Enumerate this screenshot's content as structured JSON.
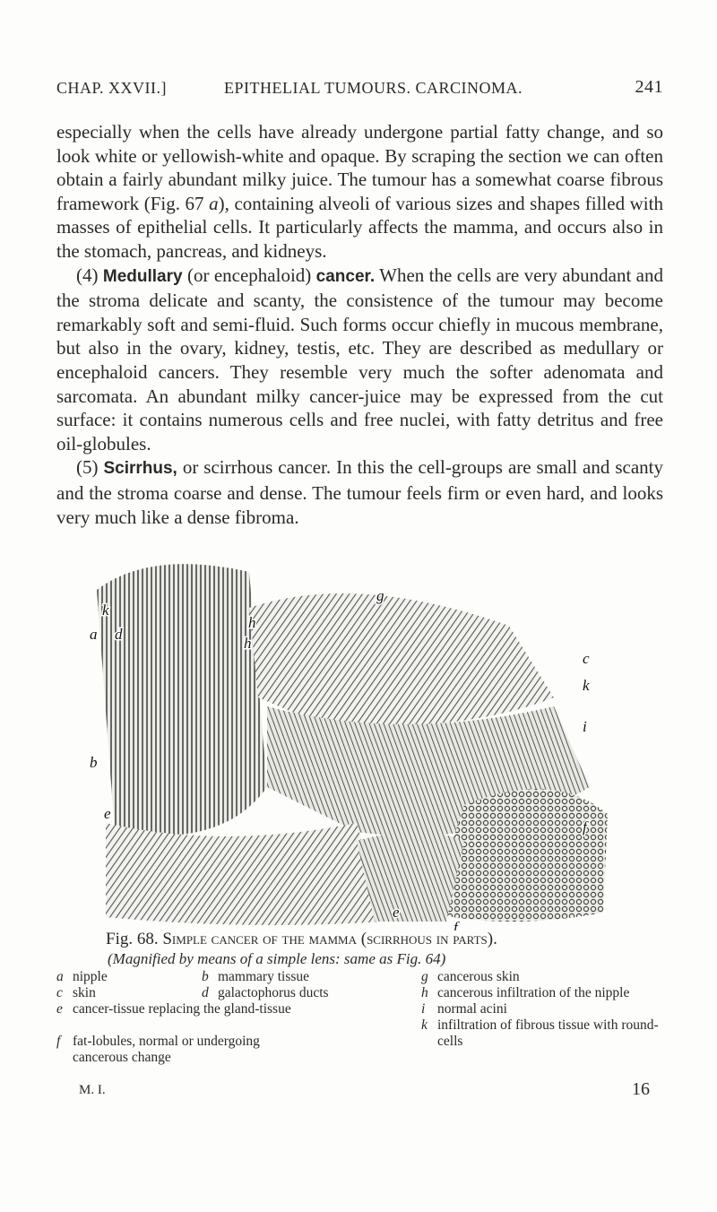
{
  "header": {
    "left": "CHAP. XXVII.]",
    "center": "EPITHELIAL TUMOURS. CARCINOMA.",
    "right": "241"
  },
  "paragraphs": [
    [
      {
        "text": "especially when the cells have already undergone partial fatty change, and so look white or yellowish-white and opaque. By scraping the section we can often obtain a fairly abundant milky juice. The tumour has a somewhat coarse fibrous framework (Fig. 67 "
      },
      {
        "text": "a",
        "style": "italic"
      },
      {
        "text": "), containing alveoli of various sizes and shapes filled with masses of epithelial cells. It particularly affects the mamma, and occurs also in the stomach, pancreas, and kidneys."
      }
    ],
    [
      {
        "text": "(4) "
      },
      {
        "text": "Medullary",
        "style": "bold"
      },
      {
        "text": " (or encephaloid) "
      },
      {
        "text": "cancer.",
        "style": "bold"
      },
      {
        "text": " When the cells are very abundant and the stroma delicate and scanty, the consistence of the tumour may become remarkably soft and semi-fluid. Such forms occur chiefly in mucous membrane, but also in the ovary, kidney, testis, etc. They are described as medullary or encephaloid cancers. They resemble very much the softer adenomata and sarcomata. An abundant milky cancer-juice may be expressed from the cut surface: it contains numerous cells and free nuclei, with fatty detritus and free oil-globules."
      }
    ],
    [
      {
        "text": "(5) "
      },
      {
        "text": "Scirrhus,",
        "style": "bold"
      },
      {
        "text": " or scirrhous cancer. In this the cell-groups are small and scanty and the stroma coarse and dense. The tumour feels firm or even hard, and looks very much like a dense fibroma."
      }
    ]
  ],
  "figure": {
    "labels": [
      "k",
      "a",
      "d",
      "h",
      "h",
      "g",
      "c",
      "k",
      "i",
      "b",
      "e",
      "f",
      "e",
      "f"
    ],
    "caption": {
      "number": "Fig. 68.",
      "title": "Simple cancer of the mamma (scirrhous in parts).",
      "subtitle": "(Magnified by means of a simple lens: same as Fig. 64)"
    },
    "legend": [
      {
        "letter": "a",
        "text": "nipple"
      },
      {
        "letter": "b",
        "text": "mammary tissue"
      },
      {
        "letter": "c",
        "text": "skin"
      },
      {
        "letter": "d",
        "text": "galactophorus ducts"
      },
      {
        "letter": "e",
        "text": "cancer-tissue replacing the gland-tissue"
      },
      {
        "letter": "f",
        "text": "fat-lobules, normal or undergoing cancerous change"
      },
      {
        "letter": "g",
        "text": "cancerous skin"
      },
      {
        "letter": "h",
        "text": "cancerous infiltration of the nipple"
      },
      {
        "letter": "i",
        "text": "normal acini"
      },
      {
        "letter": "k",
        "text": "infiltration of fibrous tissue with round-cells"
      }
    ]
  },
  "footer": {
    "left": "M. I.",
    "right": "16"
  }
}
